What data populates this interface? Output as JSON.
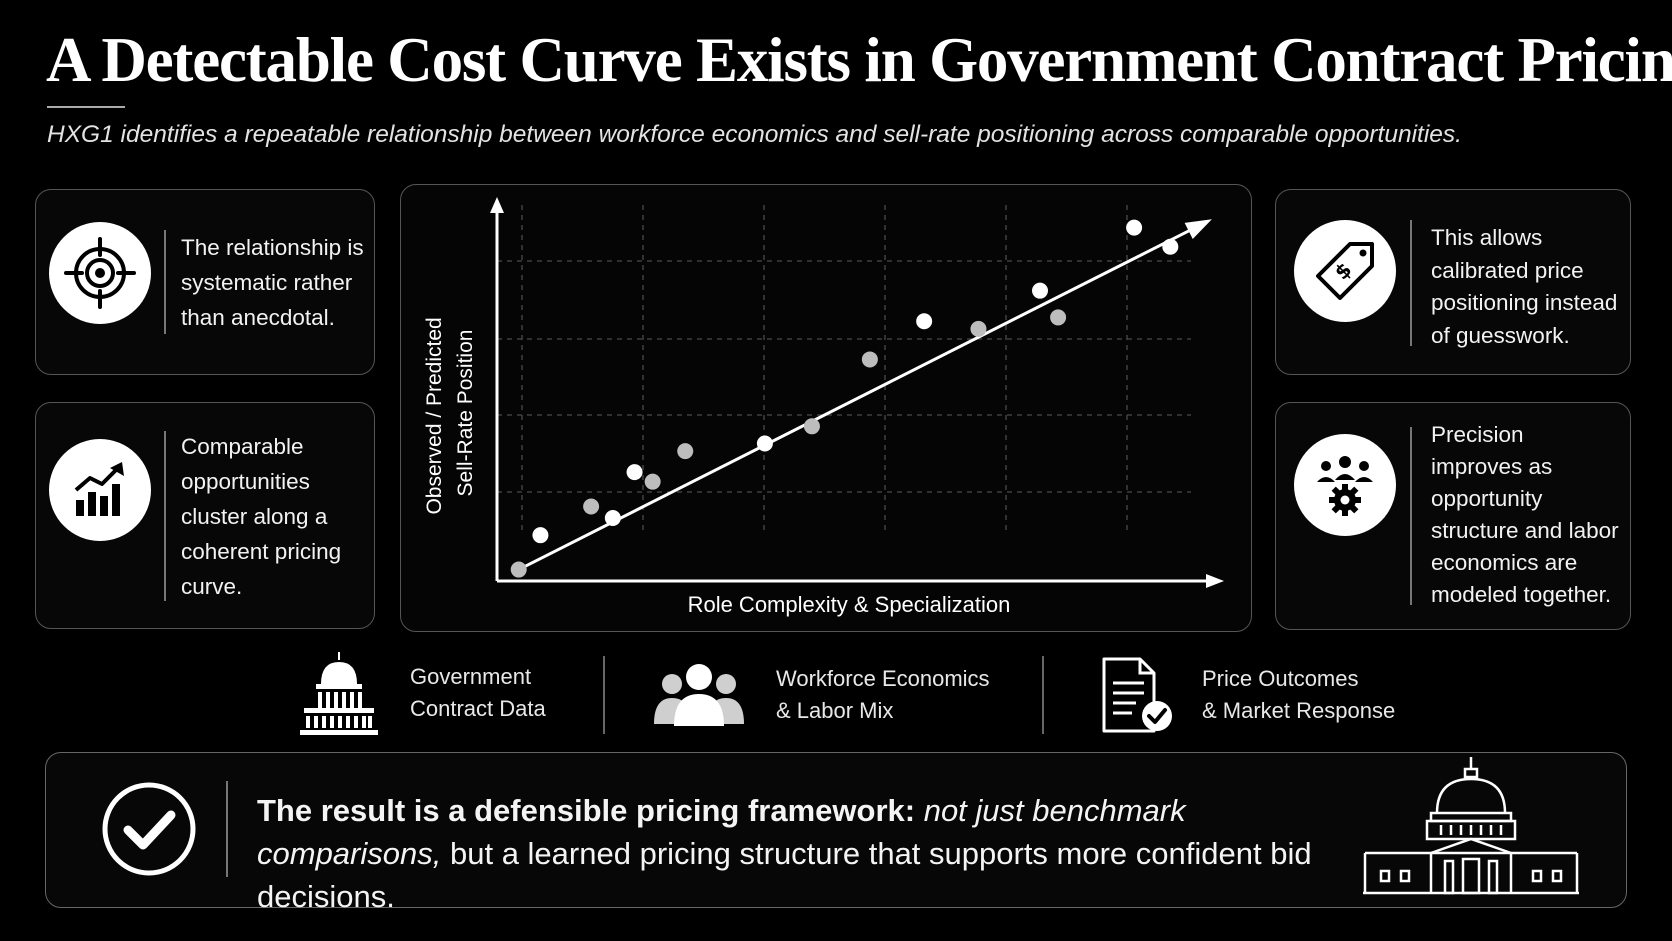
{
  "header": {
    "title": "A Detectable Cost Curve Exists in Government Contract Pricing",
    "subtitle": "HXG1 identifies a repeatable relationship between workforce economics and sell-rate positioning across comparable opportunities."
  },
  "left_cards": [
    {
      "icon": "target-icon",
      "text": "The relationship is systematic rather than anecdotal."
    },
    {
      "icon": "growth-chart-icon",
      "text": "Comparable opportunities cluster along a coherent pricing curve."
    }
  ],
  "right_cards": [
    {
      "icon": "price-tag-icon",
      "text": "This allows calibrated price positioning instead of guesswork."
    },
    {
      "icon": "team-gear-icon",
      "text": "Precision improves as opportunity structure and labor economics are modeled together."
    }
  ],
  "chart_data": {
    "type": "scatter",
    "title": "",
    "xlabel": "Role Complexity & Specialization",
    "ylabel": "Observed / Predicted Sell-Rate Position",
    "ylabel_lines": [
      "Observed / Predicted",
      "Sell-Rate Position"
    ],
    "xlim": [
      0,
      10
    ],
    "ylim": [
      0,
      10
    ],
    "grid": true,
    "trend_line": {
      "x": [
        0.3,
        9.8
      ],
      "y": [
        0.3,
        9.4
      ]
    },
    "series": [
      {
        "color_white": "#ffffff",
        "color_gray": "#bdbdbd",
        "points": [
          {
            "x": 0.3,
            "y": 0.3,
            "shade": "gray"
          },
          {
            "x": 0.6,
            "y": 1.2,
            "shade": "white"
          },
          {
            "x": 1.3,
            "y": 1.95,
            "shade": "gray"
          },
          {
            "x": 1.6,
            "y": 1.65,
            "shade": "white"
          },
          {
            "x": 1.9,
            "y": 2.85,
            "shade": "white"
          },
          {
            "x": 2.15,
            "y": 2.6,
            "shade": "gray"
          },
          {
            "x": 2.6,
            "y": 3.4,
            "shade": "gray"
          },
          {
            "x": 3.7,
            "y": 3.6,
            "shade": "white"
          },
          {
            "x": 4.35,
            "y": 4.05,
            "shade": "gray"
          },
          {
            "x": 5.15,
            "y": 5.8,
            "shade": "gray"
          },
          {
            "x": 5.9,
            "y": 6.8,
            "shade": "white"
          },
          {
            "x": 6.65,
            "y": 6.6,
            "shade": "gray"
          },
          {
            "x": 7.5,
            "y": 7.6,
            "shade": "white"
          },
          {
            "x": 7.75,
            "y": 6.9,
            "shade": "gray"
          },
          {
            "x": 8.8,
            "y": 9.25,
            "shade": "white"
          },
          {
            "x": 9.3,
            "y": 8.75,
            "shade": "white"
          }
        ]
      }
    ]
  },
  "sources": [
    {
      "icon": "capitol-icon",
      "lines": [
        "Government",
        "Contract Data"
      ]
    },
    {
      "icon": "people-icon",
      "lines": [
        "Workforce Economics",
        "& Labor Mix"
      ]
    },
    {
      "icon": "document-check-icon",
      "lines": [
        "Price Outcomes",
        "& Market Response"
      ]
    }
  ],
  "result": {
    "icon": "checkmark-icon",
    "bold": "The result is a defensible pricing framework:",
    "italic": "not just benchmark comparisons,",
    "rest": "but a learned pricing structure that supports more confident bid decisions.",
    "decoration": "capitol-outline-icon"
  },
  "colors": {
    "background": "#000000",
    "foreground": "#ffffff",
    "border": "#555555"
  }
}
